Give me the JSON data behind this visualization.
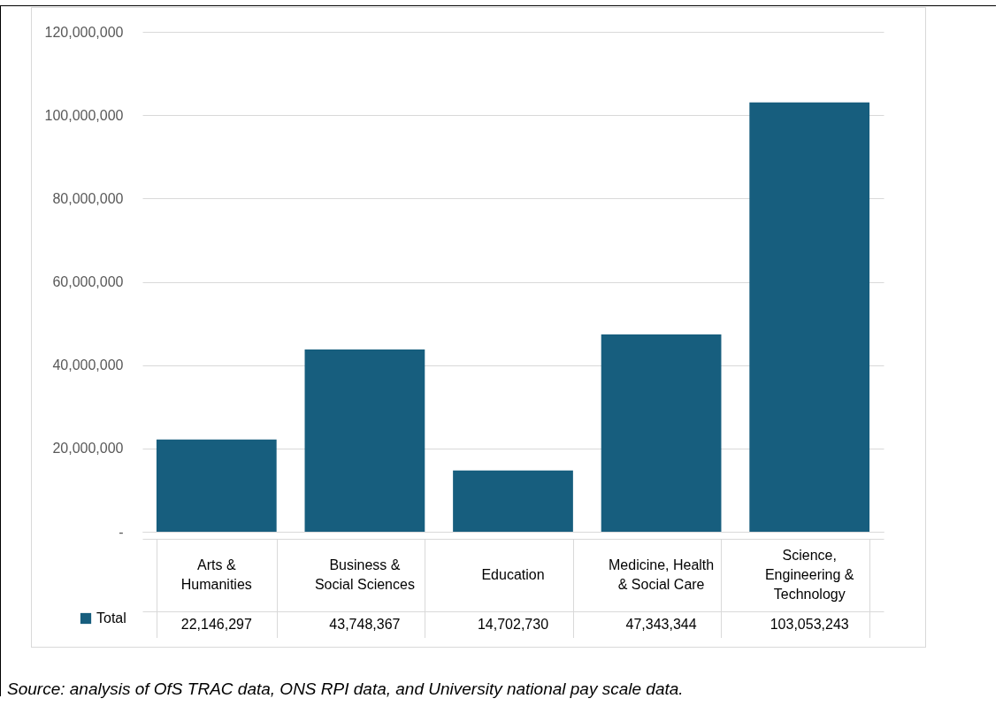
{
  "chart_data": {
    "type": "bar",
    "categories": [
      "Arts & Humanities",
      "Business & Social Sciences",
      "Education",
      "Medicine, Health & Social Care",
      "Science, Engineering & Technology"
    ],
    "series": [
      {
        "name": "Total",
        "color": "#175e7e",
        "values": [
          22146297,
          43748367,
          14702730,
          47343344,
          103053243
        ],
        "value_labels": [
          "22,146,297",
          "43,748,367",
          "14,702,730",
          "47,343,344",
          "103,053,243"
        ]
      }
    ],
    "ylim": [
      0,
      120000000
    ],
    "yticks": [
      {
        "value": 0,
        "label": "-"
      },
      {
        "value": 20000000,
        "label": "20,000,000"
      },
      {
        "value": 40000000,
        "label": "40,000,000"
      },
      {
        "value": 60000000,
        "label": "60,000,000"
      },
      {
        "value": 80000000,
        "label": "80,000,000"
      },
      {
        "value": 100000000,
        "label": "100,000,000"
      },
      {
        "value": 120000000,
        "label": "120,000,000"
      }
    ],
    "grid": "y",
    "legend": "bottom left",
    "annotations": [
      "Source: analysis of OfS TRAC data, ONS RPI data, and University national pay scale data."
    ]
  }
}
